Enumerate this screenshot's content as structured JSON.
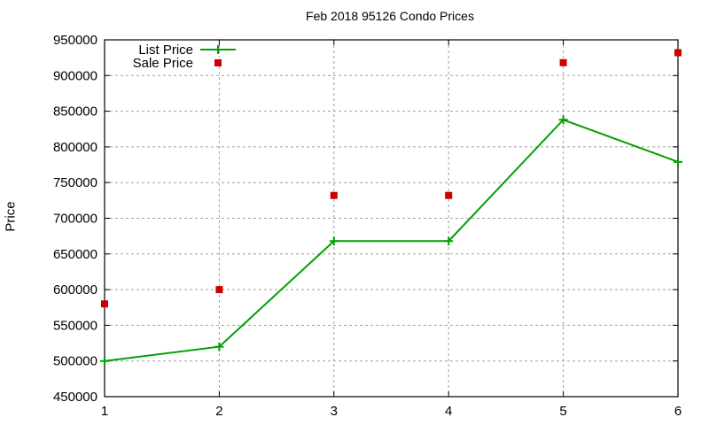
{
  "chart_data": {
    "type": "line",
    "title": "Feb 2018 95126 Condo Prices",
    "xlabel": "",
    "ylabel": "Price",
    "x": [
      1,
      2,
      3,
      4,
      5,
      6
    ],
    "xlim": [
      1,
      6
    ],
    "ylim": [
      450000,
      950000
    ],
    "xticks": [
      "1",
      "2",
      "3",
      "4",
      "5",
      "6"
    ],
    "yticks": [
      "450000",
      "500000",
      "550000",
      "600000",
      "650000",
      "700000",
      "750000",
      "800000",
      "850000",
      "900000",
      "950000"
    ],
    "grid": true,
    "legend_position": "top-left",
    "series": [
      {
        "name": "List Price",
        "style": "linespoints",
        "color": "#00a000",
        "values": [
          500000,
          520000,
          668000,
          668000,
          838000,
          779000
        ]
      },
      {
        "name": "Sale Price",
        "style": "points",
        "color": "#cc0000",
        "values": [
          580000,
          600000,
          732000,
          732000,
          918000,
          932000
        ]
      }
    ]
  }
}
